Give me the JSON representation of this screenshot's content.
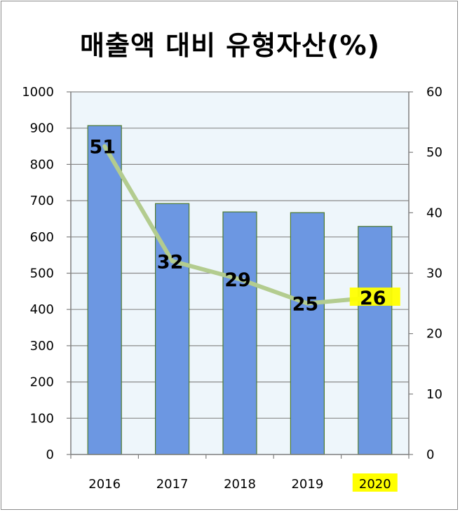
{
  "chart_data": {
    "type": "bar",
    "title": "매출액 대비 유형자산(%)",
    "categories": [
      "2016",
      "2017",
      "2018",
      "2019",
      "2020"
    ],
    "series": [
      {
        "type": "bar",
        "axis": "left",
        "values": [
          907,
          692,
          669,
          667,
          629
        ],
        "color": "#6c97e2"
      },
      {
        "type": "line",
        "axis": "right",
        "values": [
          51,
          32,
          29,
          25,
          26
        ],
        "color": "#b3cc8f"
      }
    ],
    "ylim_left": [
      0,
      1000
    ],
    "ylim_right": [
      0,
      60
    ],
    "yticks_left": [
      "0",
      "100",
      "200",
      "300",
      "400",
      "500",
      "600",
      "700",
      "800",
      "900",
      "1000"
    ],
    "yticks_right": [
      "0",
      "10",
      "20",
      "30",
      "40",
      "50",
      "60"
    ],
    "grid": true,
    "plot_background": "#eef6fb",
    "highlight": {
      "category": "2020",
      "color": "#ffff00"
    }
  }
}
